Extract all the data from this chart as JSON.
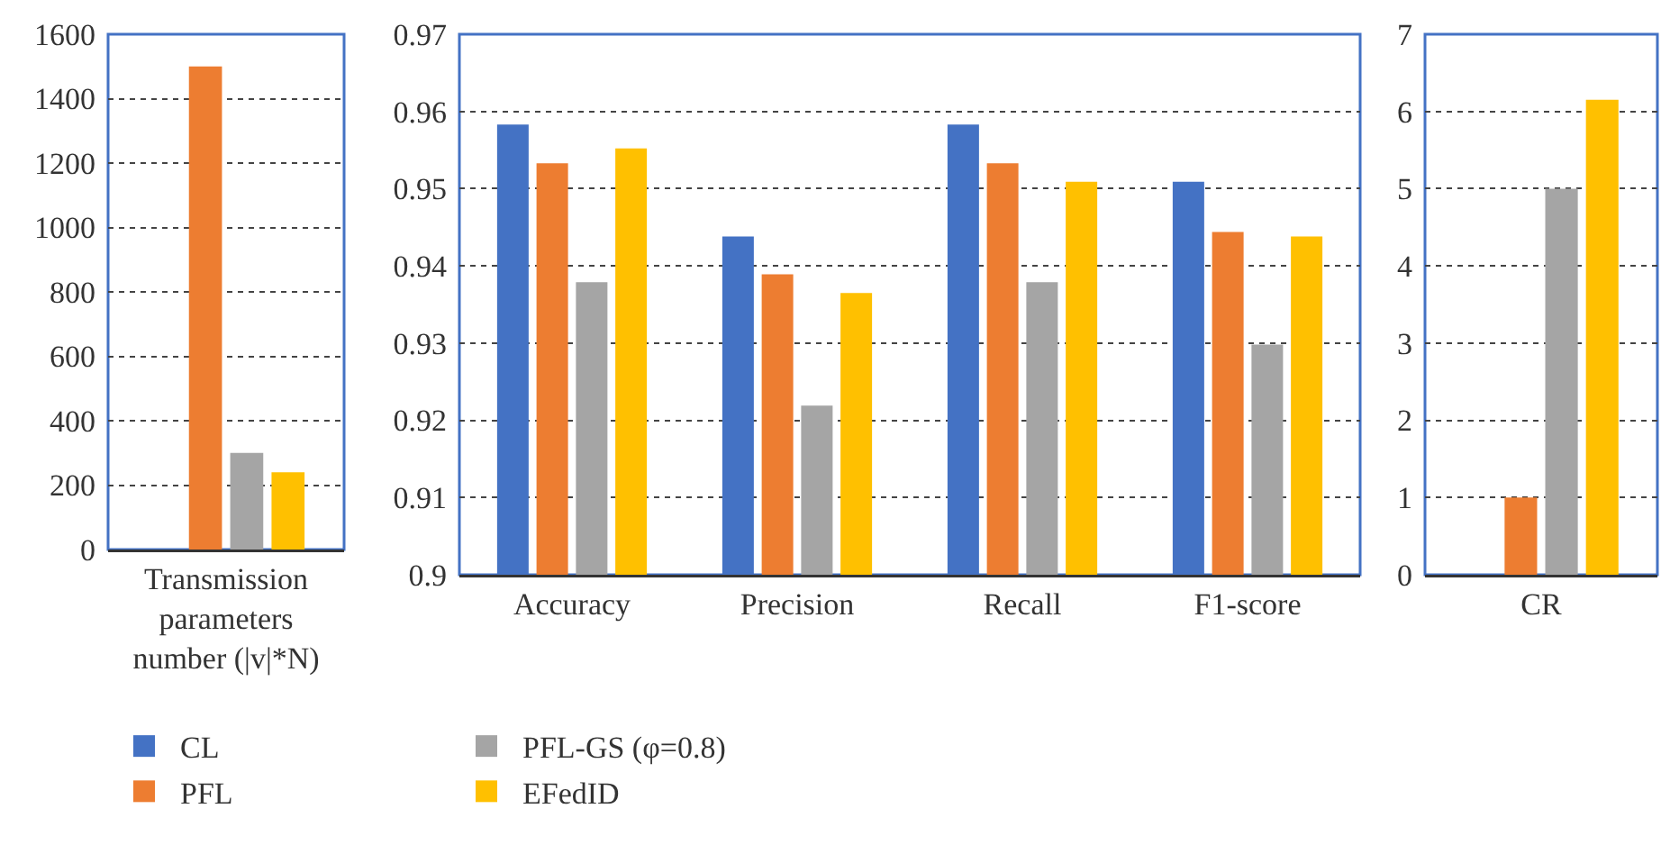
{
  "chart_data": [
    {
      "type": "bar",
      "categories": [
        "Transmission parameters number (|v|*N)"
      ],
      "series": [
        {
          "name": "CL",
          "color": "#4472c4",
          "values": [
            null
          ]
        },
        {
          "name": "PFL",
          "color": "#ed7d31",
          "values": [
            1500
          ]
        },
        {
          "name": "PFL-GS (φ=0.8)",
          "color": "#a5a5a5",
          "values": [
            300
          ]
        },
        {
          "name": "EFedID",
          "color": "#ffc000",
          "values": [
            240
          ]
        }
      ],
      "ylim": [
        0,
        1600
      ],
      "yticks": [
        0,
        200,
        400,
        600,
        800,
        1000,
        1200,
        1400,
        1600
      ],
      "grid": "y",
      "legend": "bottom"
    },
    {
      "type": "bar",
      "categories": [
        "Accuracy",
        "Precision",
        "Recall",
        "F1-score"
      ],
      "series": [
        {
          "color": "#4472c4",
          "values": [
            0.9583,
            0.9438,
            0.9583,
            0.9509
          ]
        },
        {
          "color": "#ed7d31",
          "values": [
            0.9533,
            0.9389,
            0.9533,
            0.9444
          ]
        },
        {
          "color": "#a5a5a5",
          "values": [
            0.9379,
            0.9219,
            0.9379,
            0.9298
          ]
        },
        {
          "color": "#ffc000",
          "values": [
            0.9552,
            0.9365,
            0.9509,
            0.9438
          ]
        }
      ],
      "ylim": [
        0.9,
        0.97
      ],
      "yticks": [
        0.9,
        0.91,
        0.92,
        0.93,
        0.94,
        0.95,
        0.96,
        0.97
      ],
      "grid": "y"
    },
    {
      "type": "bar",
      "categories": [
        "CR"
      ],
      "series": [
        {
          "color": "#4472c4",
          "values": [
            null
          ]
        },
        {
          "color": "#ed7d31",
          "values": [
            1
          ]
        },
        {
          "color": "#a5a5a5",
          "values": [
            5
          ]
        },
        {
          "color": "#ffc000",
          "values": [
            6.15
          ]
        }
      ],
      "ylim": [
        0,
        7
      ],
      "yticks": [
        0,
        1,
        2,
        3,
        4,
        5,
        6,
        7
      ],
      "grid": "y"
    }
  ]
}
